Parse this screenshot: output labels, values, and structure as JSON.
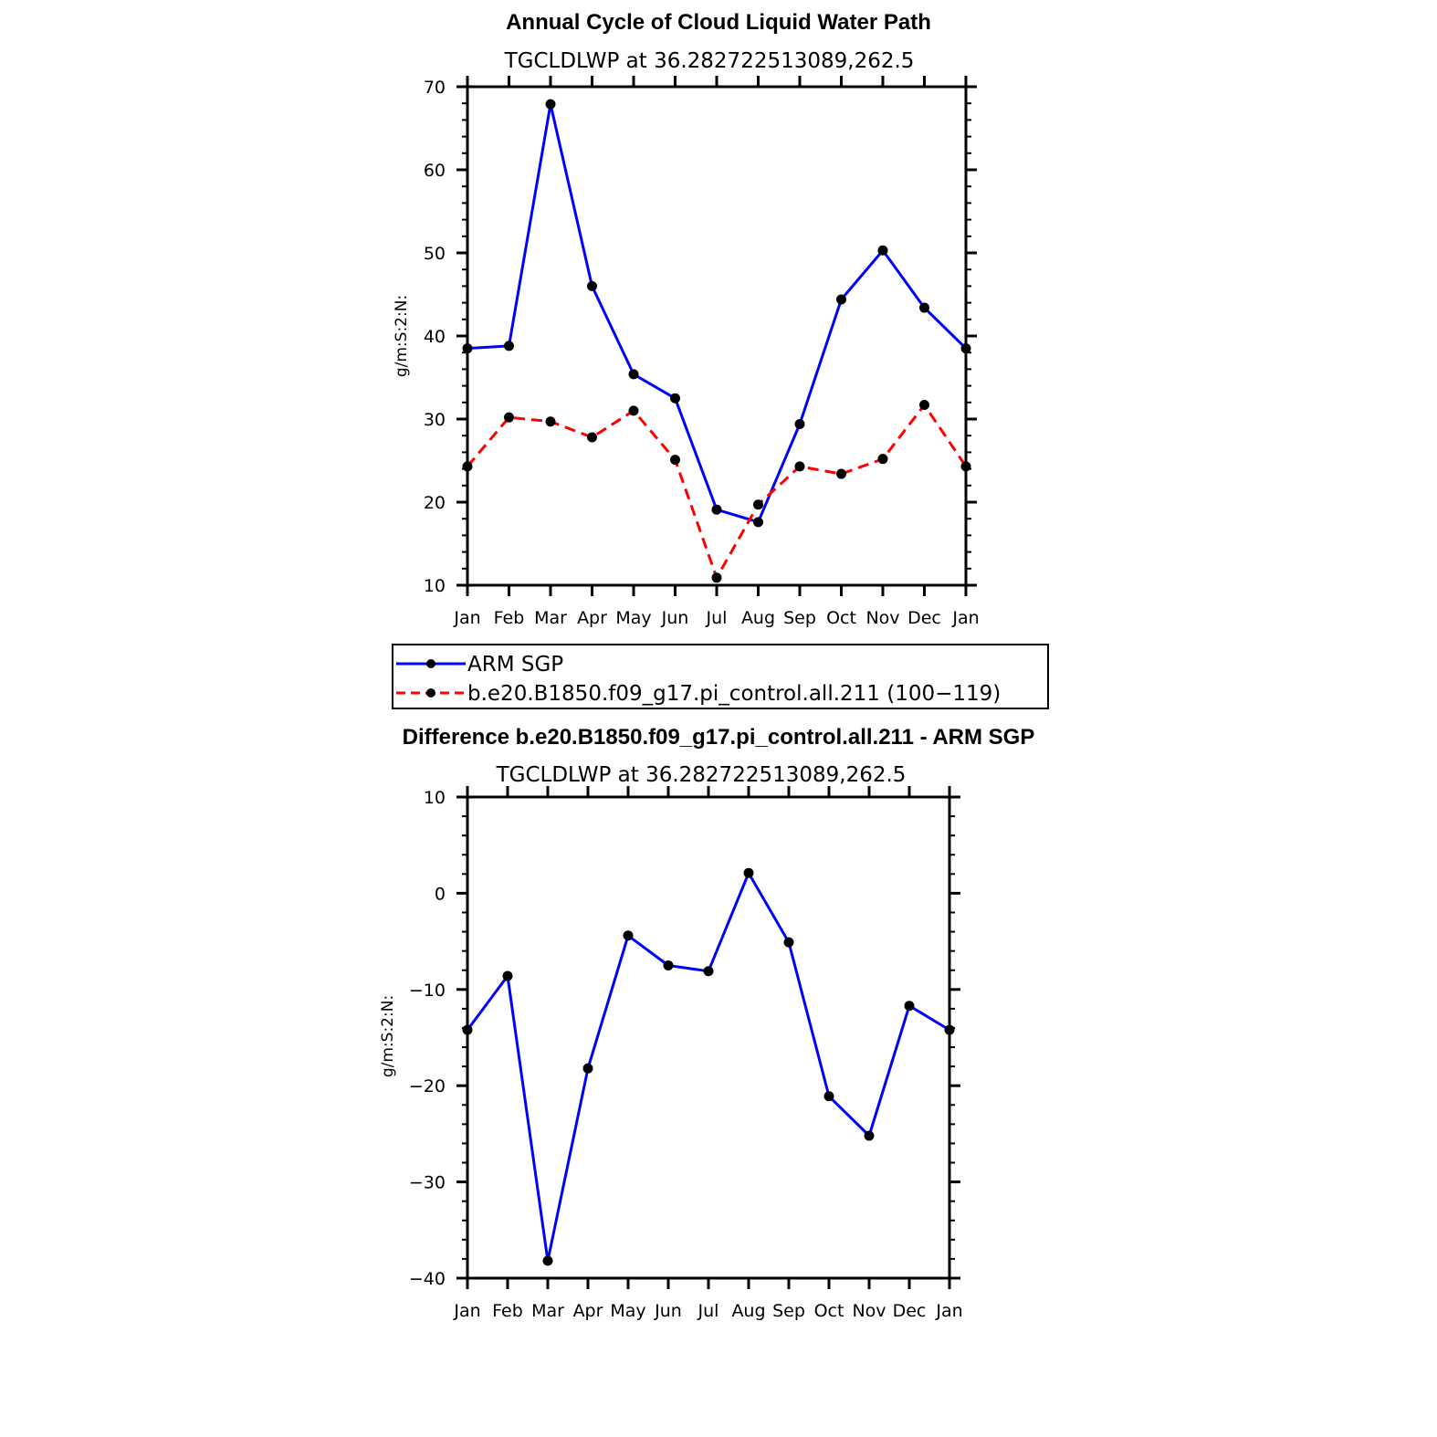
{
  "chart_data": [
    {
      "type": "line",
      "title": "Annual Cycle of Cloud Liquid Water Path",
      "subtitle": "TGCLDLWP  at  36.282722513089,262.5",
      "xlabel": "",
      "ylabel": "g/m:S:2:N:",
      "categories": [
        "Jan",
        "Feb",
        "Mar",
        "Apr",
        "May",
        "Jun",
        "Jul",
        "Aug",
        "Sep",
        "Oct",
        "Nov",
        "Dec",
        "Jan"
      ],
      "ylim": [
        10,
        70
      ],
      "yticks": [
        "10",
        "20",
        "30",
        "40",
        "50",
        "60",
        "70"
      ],
      "series": [
        {
          "name": "ARM SGP",
          "color": "#0000ff",
          "dashed": false,
          "values": [
            38.5,
            38.8,
            67.9,
            46.0,
            35.4,
            32.5,
            19.1,
            17.6,
            29.4,
            44.4,
            50.3,
            43.4,
            38.5
          ]
        },
        {
          "name": "b.e20.B1850.f09_g17.pi_control.all.211 (100−119)",
          "color": "#ff0000",
          "dashed": true,
          "values": [
            24.3,
            30.2,
            29.7,
            27.8,
            31.0,
            25.1,
            10.9,
            19.7,
            24.3,
            23.4,
            25.2,
            31.7,
            24.3
          ]
        }
      ],
      "legend_placement": "bottom"
    },
    {
      "type": "line",
      "title": "Difference b.e20.B1850.f09_g17.pi_control.all.211 - ARM SGP",
      "subtitle": "TGCLDLWP  at  36.282722513089,262.5",
      "xlabel": "",
      "ylabel": "g/m:S:2:N:",
      "categories": [
        "Jan",
        "Feb",
        "Mar",
        "Apr",
        "May",
        "Jun",
        "Jul",
        "Aug",
        "Sep",
        "Oct",
        "Nov",
        "Dec",
        "Jan"
      ],
      "ylim": [
        -40,
        10
      ],
      "yticks": [
        "−40",
        "−30",
        "−20",
        "−10",
        "0",
        "10"
      ],
      "series": [
        {
          "name": "Difference",
          "color": "#0000ff",
          "dashed": false,
          "values": [
            -14.2,
            -8.6,
            -38.2,
            -18.2,
            -4.4,
            -7.5,
            -8.1,
            2.1,
            -5.1,
            -21.1,
            -25.2,
            -11.7,
            -14.2
          ]
        }
      ]
    }
  ]
}
